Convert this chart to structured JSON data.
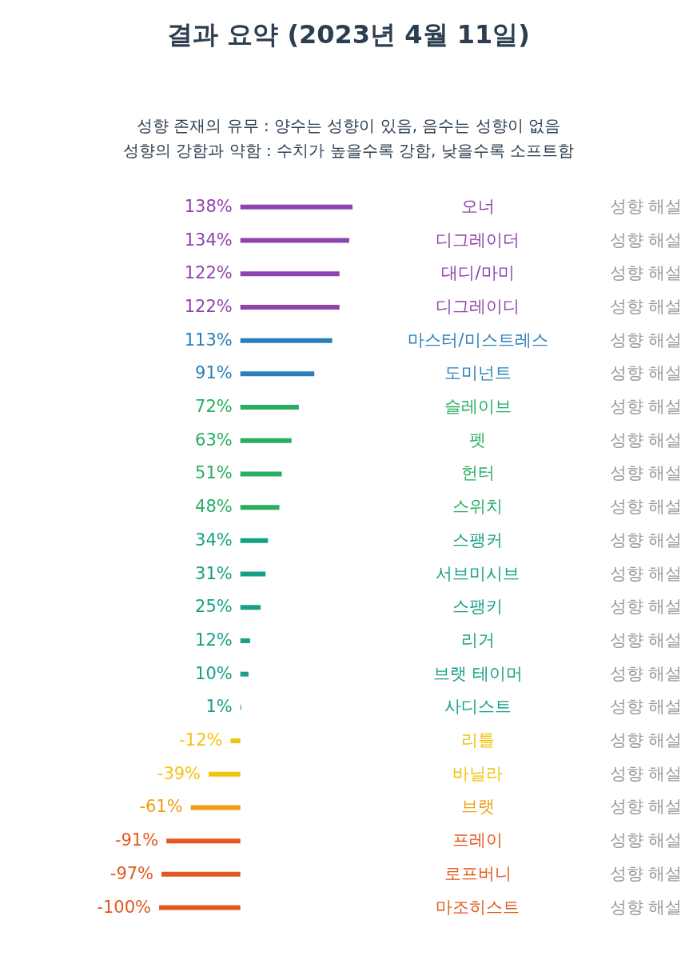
{
  "chart_data": {
    "type": "bar",
    "orientation": "horizontal",
    "title": "결과 요약 (2023년 4월 11일)",
    "subtitle": "성향 존재의 유무 : 양수는 성향이 있음, 음수는 성향이 없음\n성향의 강함과 약함 : 수치가 높을수록 강함, 낮을수록 소프트함",
    "categories": [
      "오너",
      "디그레이더",
      "대디/마미",
      "디그레이디",
      "마스터/미스트레스",
      "도미넌트",
      "슬레이브",
      "펫",
      "헌터",
      "스위치",
      "스팽커",
      "서브미시브",
      "스팽키",
      "리거",
      "브랫 테이머",
      "사디스트",
      "리틀",
      "바닐라",
      "브랫",
      "프레이",
      "로프버니",
      "마조히스트"
    ],
    "values": [
      138,
      134,
      122,
      122,
      113,
      91,
      72,
      63,
      51,
      48,
      34,
      31,
      25,
      12,
      10,
      1,
      -12,
      -39,
      -61,
      -91,
      -97,
      -100
    ],
    "value_labels": [
      "138%",
      "134%",
      "122%",
      "122%",
      "113%",
      "91%",
      "72%",
      "63%",
      "51%",
      "48%",
      "34%",
      "31%",
      "25%",
      "12%",
      "10%",
      "1%",
      "-12%",
      "-39%",
      "-61%",
      "-91%",
      "-97%",
      "-100%"
    ],
    "colors": [
      "#8e44ad",
      "#8e44ad",
      "#8e44ad",
      "#8e44ad",
      "#2980b9",
      "#2980b9",
      "#27ae60",
      "#27ae60",
      "#27ae60",
      "#27ae60",
      "#16a085",
      "#16a085",
      "#16a085",
      "#16a085",
      "#16a085",
      "#16a085",
      "#f1c40f",
      "#f1c40f",
      "#f39c12",
      "#e2581e",
      "#e2581e",
      "#e2581e"
    ],
    "annotations": [
      "성향 해설",
      "성향 해설",
      "성향 해설",
      "성향 해설",
      "성향 해설",
      "성향 해설",
      "성향 해설",
      "성향 해설",
      "성향 해설",
      "성향 해설",
      "성향 해설",
      "성향 해설",
      "성향 해설",
      "성향 해설",
      "성향 해설",
      "성향 해설",
      "성향 해설",
      "성향 해설",
      "성향 해설",
      "성향 해설",
      "성향 해설",
      "성향 해설"
    ]
  }
}
